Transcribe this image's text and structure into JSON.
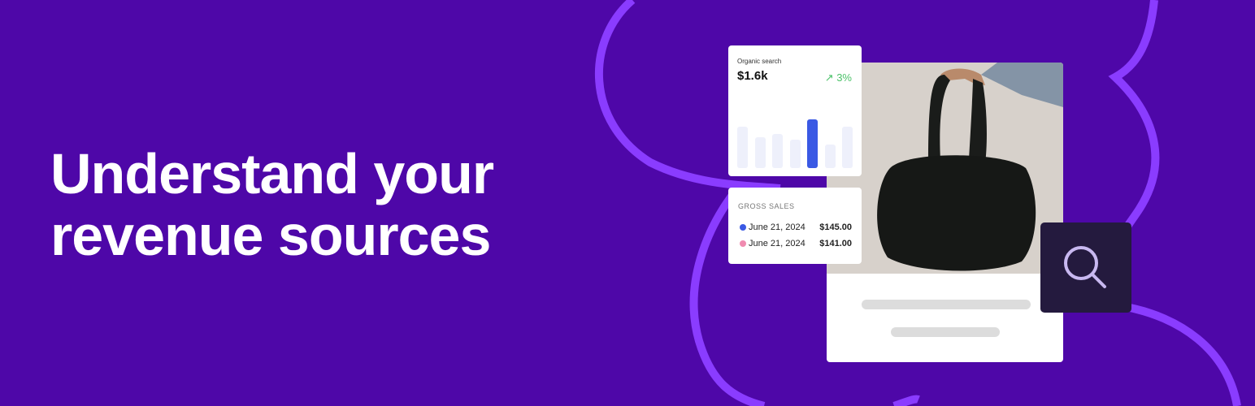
{
  "headline": {
    "line1": "Understand your",
    "line2": "revenue sources"
  },
  "organic_card": {
    "title": "Organic search",
    "value": "$1.6k",
    "change": "3%",
    "trend_icon": "trend-up-icon",
    "bars": [
      0.57,
      0.42,
      0.47,
      0.39,
      0.67,
      0.32,
      0.57
    ],
    "highlight_index": 4,
    "colors": {
      "bar": "#eef0fb",
      "highlight": "#3a59e4",
      "change": "#4cc26a"
    }
  },
  "gross_sales": {
    "title": "GROSS SALES",
    "rows": [
      {
        "date": "June 21, 2024",
        "amount": "$145.00",
        "color": "#3a59e4"
      },
      {
        "date": "June 21, 2024",
        "amount": "$141.00",
        "color": "#f08bb0"
      }
    ]
  },
  "search_icon": "search-icon",
  "colors": {
    "background": "#4e07a8",
    "swirl": "#8a3cff"
  }
}
